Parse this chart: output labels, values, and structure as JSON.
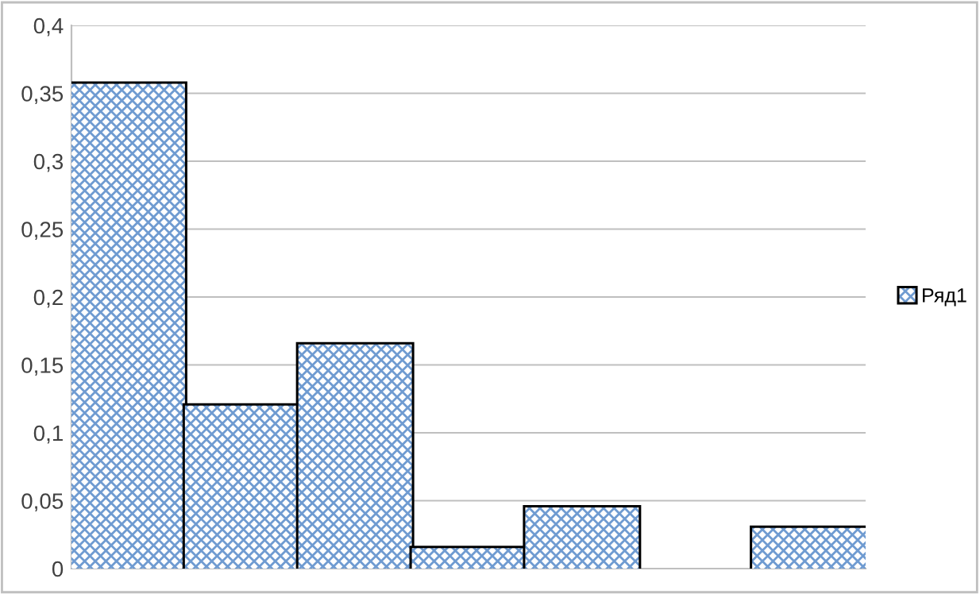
{
  "chart_data": {
    "type": "bar",
    "categories": [
      null,
      null,
      null,
      null,
      null,
      null,
      null
    ],
    "series": [
      {
        "name": "Ряд1",
        "color": "#6f9bd1",
        "values": [
          0.357,
          0.12,
          0.165,
          0.015,
          0.045,
          0,
          0.03
        ]
      }
    ],
    "ylim": [
      0,
      0.4
    ],
    "yticks": [
      0,
      {
        "value": 0.05,
        "label": "0,05"
      },
      {
        "value": 0.1,
        "label": "0,1"
      },
      {
        "value": 0.15,
        "label": "0,15"
      },
      {
        "value": 0.2,
        "label": "0,2"
      },
      {
        "value": 0.25,
        "label": "0,25"
      },
      {
        "value": 0.3,
        "label": "0,3"
      },
      {
        "value": 0.35,
        "label": "0,35"
      },
      {
        "value": 0.4,
        "label": "0,4"
      }
    ],
    "grid": "y",
    "legend": "right"
  }
}
